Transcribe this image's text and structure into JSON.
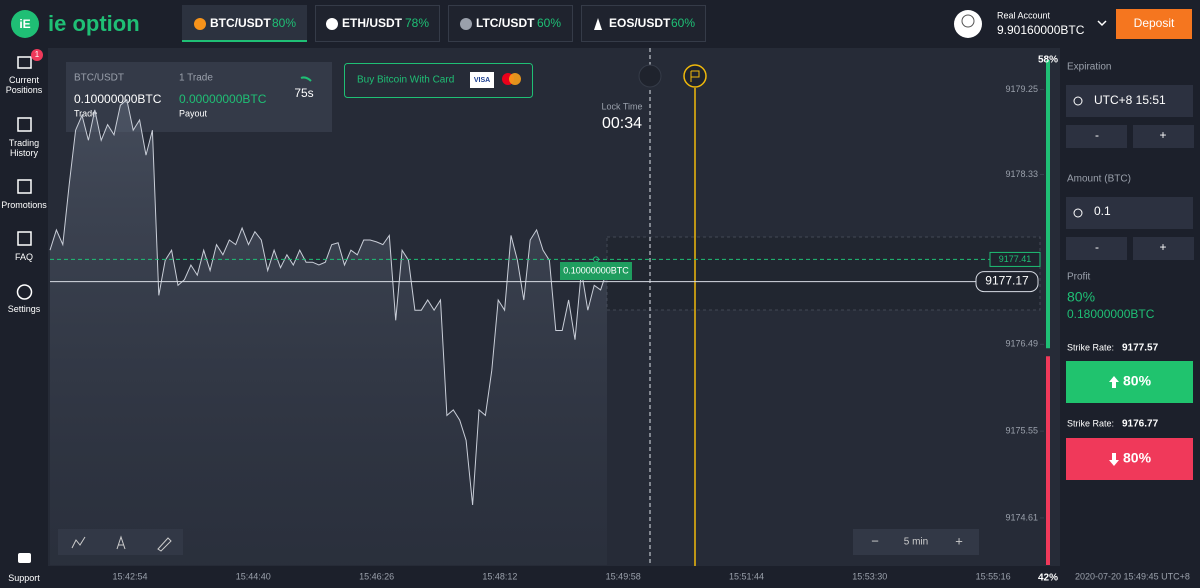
{
  "header": {
    "logo": "ie option",
    "tabs": [
      {
        "pair": "BTC/USDT",
        "payout": "80%"
      },
      {
        "pair": "ETH/USDT",
        "payout": "78%"
      },
      {
        "pair": "LTC/USDT",
        "payout": "60%"
      },
      {
        "pair": "EOS/USDT",
        "payout": "60%"
      }
    ],
    "account_type": "Real Account",
    "balance": "9.90160000BTC",
    "deposit": "Deposit"
  },
  "sidebar": {
    "items": [
      {
        "label": "Current Positions",
        "badge": "1"
      },
      {
        "label": "Trading History"
      },
      {
        "label": "Promotions"
      },
      {
        "label": "FAQ"
      },
      {
        "label": "Settings"
      }
    ],
    "support": "Support"
  },
  "trade_box": {
    "pair": "BTC/USDT",
    "amount": "0.10000000BTC",
    "amount_label": "Trade",
    "count": "1 Trade",
    "payout": "0.00000000BTC",
    "payout_label": "Payout",
    "timer": "75s"
  },
  "buy_card": {
    "label": "Buy Bitcoin With Card",
    "visa": "VISA"
  },
  "lock_time": {
    "label": "Lock Time",
    "value": "00:34"
  },
  "trade_marker": "0.10000000BTC",
  "chart_data": {
    "type": "line",
    "values": [
      9177.51,
      9177.73,
      9177.57,
      9178.22,
      9178.81,
      9178.97,
      9178.7,
      9179.03,
      9178.7,
      9178.87,
      9178.76,
      9179.08,
      9179.14,
      9178.81,
      9178.92,
      9178.54,
      9178.81,
      9177.02,
      9177.4,
      9177.51,
      9177.13,
      9177.19,
      9177.35,
      9177.24,
      9177.51,
      9177.29,
      9177.57,
      9177.46,
      9177.62,
      9177.57,
      9177.75,
      9177.57,
      9177.71,
      9177.62,
      9177.29,
      9177.51,
      9177.32,
      9177.46,
      9177.35,
      9177.51,
      9177.38,
      9177.38,
      9177.35,
      9177.38,
      9177.57,
      9177.59,
      9177.35,
      9177.51,
      9177.46,
      9177.62,
      9177.62,
      9177.6,
      9177.57,
      9177.67,
      9176.75,
      9177.51,
      9177.4,
      9176.86,
      9176.86,
      9176.97,
      9176.86,
      9176.97,
      9175.72,
      9175.78,
      9175.67,
      9175.45,
      9174.75,
      9175.78,
      9175.72,
      9176.21,
      9176.97,
      9176.86,
      9177.67,
      9177.4,
      9176.97,
      9177.62,
      9177.73,
      9177.51,
      9177.4,
      9176.64,
      9176.64,
      9176.97,
      9176.54,
      9177.29,
      9176.86,
      9177.13,
      9177.08,
      9177.29
    ],
    "ylim": [
      9174.1,
      9179.7
    ],
    "yticks": [
      9179.25,
      9178.33,
      9176.49,
      9175.55,
      9174.61
    ],
    "entry_price": 9177.41,
    "current_price": 9177.17,
    "x_labels": [
      "15:42:54",
      "15:44:40",
      "15:46:26",
      "15:48:12",
      "15:49:58",
      "15:51:44",
      "15:53:30",
      "15:55:16"
    ],
    "up_share": {
      "value": 58,
      "label": "58%"
    },
    "down_share": {
      "value": 42,
      "label": "42%"
    },
    "timeframe": "5 min",
    "zoom_out": "−",
    "zoom_in": "+"
  },
  "panel": {
    "expiration_label": "Expiration",
    "expiration": "UTC+8 15:51",
    "amount_label": "Amount (BTC)",
    "amount": "0.1",
    "minus": "-",
    "plus": "+",
    "profit_label": "Profit",
    "profit_percent": "80%",
    "profit_amount": "0.18000000BTC",
    "call": {
      "strike_label": "Strike Rate:",
      "strike": "9177.57",
      "button": "80%"
    },
    "put": {
      "strike_label": "Strike Rate:",
      "strike": "9176.77",
      "button": "80%"
    }
  },
  "timestamp": "2020-07-20 15:49:45 UTC+8"
}
